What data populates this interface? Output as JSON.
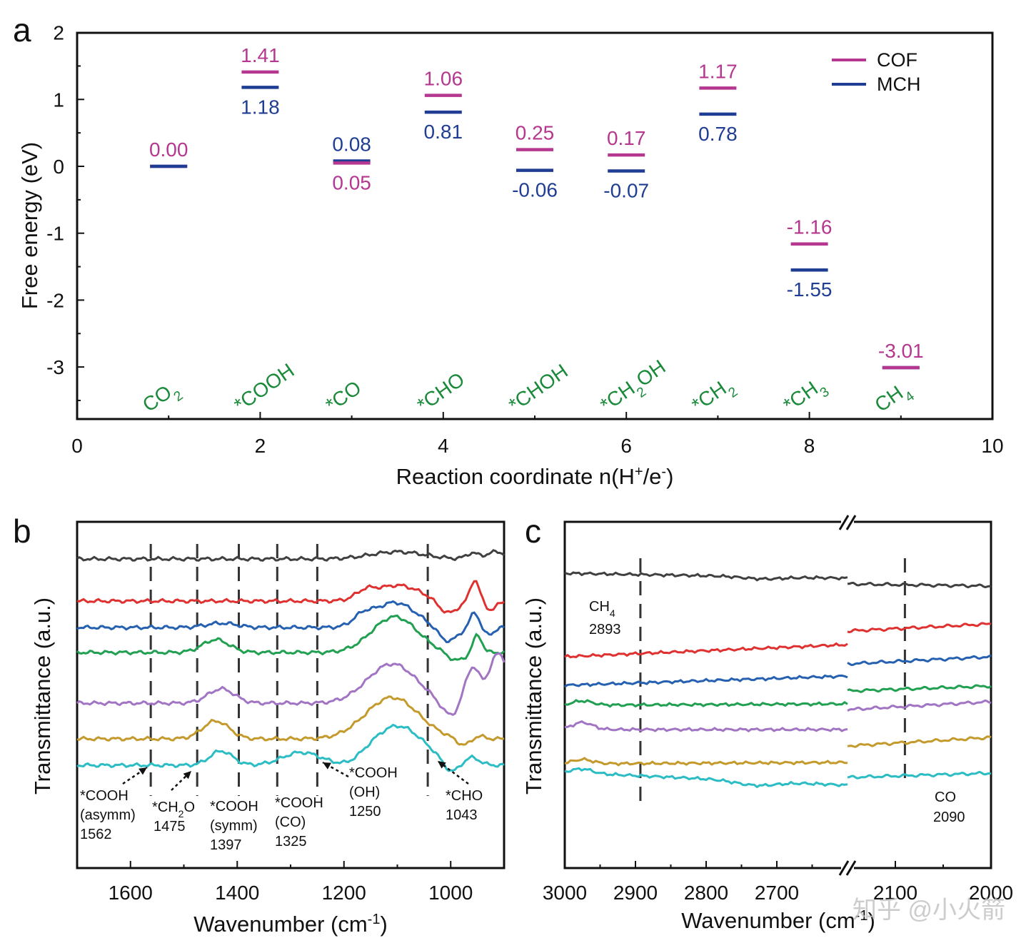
{
  "colors": {
    "cof": "#b5378f",
    "mch": "#1f3e93",
    "species": "#1a8a3a",
    "spectra": [
      "#404040",
      "#e03131",
      "#2561b0",
      "#22a052",
      "#a274c4",
      "#c49a2c",
      "#2bbcc4"
    ]
  },
  "watermark": "知乎 @小火箭",
  "chart_data": [
    {
      "panel": "a",
      "type": "line",
      "style": "energy-levels",
      "panel_label": "a",
      "xlabel": "Reaction coordinate n(H",
      "xlabel_sup": "+",
      "xlabel_mid": "/e",
      "xlabel_sup2": "-",
      "xlabel_end": ")",
      "ylabel": "Free energy (eV)",
      "xlim": [
        0,
        10
      ],
      "ylim": [
        -3.75,
        2
      ],
      "xticks": [
        0,
        2,
        4,
        6,
        8,
        10
      ],
      "yticks": [
        2,
        1,
        0,
        -1,
        -2,
        -3
      ],
      "legend_position": "top-right",
      "series": [
        {
          "name": "COF",
          "color_key": "cof",
          "points": [
            {
              "x": 1,
              "y": 0.0,
              "label": "0.00"
            },
            {
              "x": 2,
              "y": 1.41,
              "label": "1.41"
            },
            {
              "x": 3,
              "y": 0.05,
              "label": "0.05"
            },
            {
              "x": 4,
              "y": 1.06,
              "label": "1.06"
            },
            {
              "x": 5,
              "y": 0.25,
              "label": "0.25"
            },
            {
              "x": 6,
              "y": 0.17,
              "label": "0.17"
            },
            {
              "x": 7,
              "y": 1.17,
              "label": "1.17"
            },
            {
              "x": 8,
              "y": -1.16,
              "label": "-1.16"
            },
            {
              "x": 9,
              "y": -3.01,
              "label": "-3.01"
            }
          ]
        },
        {
          "name": "MCH",
          "color_key": "mch",
          "points": [
            {
              "x": 1,
              "y": 0.0,
              "label": ""
            },
            {
              "x": 2,
              "y": 1.18,
              "label": "1.18"
            },
            {
              "x": 3,
              "y": 0.08,
              "label": "0.08"
            },
            {
              "x": 4,
              "y": 0.81,
              "label": "0.81"
            },
            {
              "x": 5,
              "y": -0.06,
              "label": "-0.06"
            },
            {
              "x": 6,
              "y": -0.07,
              "label": "-0.07"
            },
            {
              "x": 7,
              "y": 0.78,
              "label": "0.78"
            },
            {
              "x": 8,
              "y": -1.55,
              "label": "-1.55"
            },
            {
              "x": 9,
              "y": -3.01,
              "label": ""
            }
          ]
        }
      ],
      "species": [
        {
          "x": 1,
          "main": "CO",
          "sub": "2",
          "tail": ""
        },
        {
          "x": 2,
          "main": "*COOH",
          "sub": "",
          "tail": ""
        },
        {
          "x": 3,
          "main": "*CO",
          "sub": "",
          "tail": ""
        },
        {
          "x": 4,
          "main": "*CHO",
          "sub": "",
          "tail": ""
        },
        {
          "x": 5,
          "main": "*CHOH",
          "sub": "",
          "tail": ""
        },
        {
          "x": 6,
          "main": "*CH",
          "sub": "2",
          "tail": "OH"
        },
        {
          "x": 7,
          "main": "*CH",
          "sub": "2",
          "tail": ""
        },
        {
          "x": 8,
          "main": "*CH",
          "sub": "3",
          "tail": ""
        },
        {
          "x": 9,
          "main": "CH",
          "sub": "4",
          "tail": ""
        }
      ]
    },
    {
      "panel": "b",
      "type": "line",
      "panel_label": "b",
      "xlabel": "Wavenumber (cm",
      "xlabel_sup": "-1",
      "xlabel_end": ")",
      "ylabel": "Transmittance (a.u.)",
      "xlim": [
        1700,
        900
      ],
      "xticks": [
        1600,
        1400,
        1200,
        1000
      ],
      "grid": false,
      "series_count": 7,
      "markers": [
        {
          "x": 1562,
          "lines": [
            "*COOH",
            "(asymm)",
            "1562"
          ]
        },
        {
          "x": 1475,
          "lines": [
            "*CH",
            "1475"
          ],
          "sub": "2",
          "tail": "O"
        },
        {
          "x": 1397,
          "lines": [
            "*COOH",
            "(symm)",
            "1397"
          ]
        },
        {
          "x": 1325,
          "lines": [
            "*COOH",
            "(CO)",
            "1325"
          ]
        },
        {
          "x": 1250,
          "lines": [
            "*COOH",
            "(OH)",
            "1250"
          ]
        },
        {
          "x": 1043,
          "lines": [
            "*CHO",
            "1043"
          ]
        }
      ]
    },
    {
      "panel": "c",
      "type": "line",
      "panel_label": "c",
      "xlabel": "Wavenumber (cm",
      "xlabel_sup": "-1",
      "xlabel_end": ")",
      "ylabel": "Transmittance (a.u.)",
      "xlim_left": [
        3000,
        2600
      ],
      "xlim_right": [
        2150,
        2000
      ],
      "axis_break": true,
      "xticks": [
        3000,
        2900,
        2800,
        2700,
        2100,
        2000
      ],
      "series_count": 7,
      "markers": [
        {
          "x": 2893,
          "main": "CH",
          "sub": "4",
          "value": "2893"
        },
        {
          "x": 2090,
          "main": "CO",
          "sub": "",
          "value": "2090"
        }
      ]
    }
  ]
}
